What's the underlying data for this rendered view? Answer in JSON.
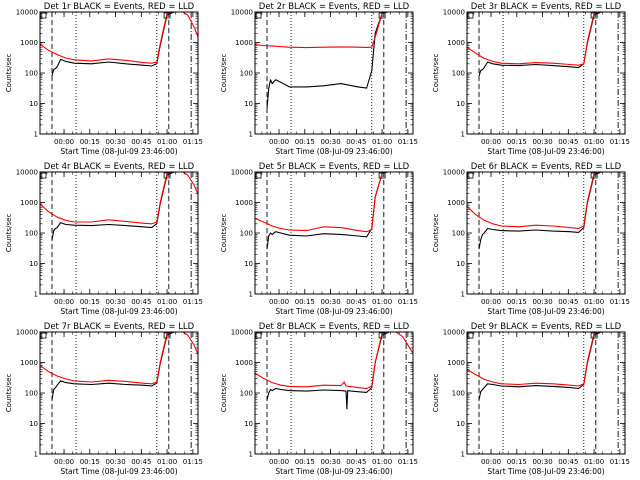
{
  "figure": {
    "background": "#ffffff",
    "series_colors": {
      "events": "#000000",
      "lld": "#ff0000"
    },
    "x_tick_labels": [
      "00:00",
      "00:15",
      "00:30",
      "00:45",
      "01:00",
      "01:15"
    ],
    "y_tick_labels": [
      "1",
      "10",
      "100",
      "1000",
      "10000"
    ]
  },
  "chart_data": [
    {
      "type": "line",
      "title": "Det 1r BLACK = Events, RED = LLD",
      "xlabel": "Start Time (08-Jul-09 23:46:00)",
      "ylabel": "Counts/sec",
      "yscale": "log",
      "ylim": [
        1,
        10000
      ],
      "xlim_minutes_from_start": [
        0,
        92
      ],
      "x_ticks": [
        "00:00",
        "00:15",
        "00:30",
        "00:45",
        "01:00",
        "01:15"
      ],
      "y_ticks": [
        "1",
        "10",
        "100",
        "1000",
        "10000"
      ],
      "vlines": {
        "dashed": [
          7,
          75
        ],
        "dotted": [
          21,
          68
        ],
        "dashdot": [
          88
        ]
      },
      "series": [
        {
          "name": "Events",
          "color": "#000000",
          "x": [
            7,
            8,
            9,
            10,
            12,
            15,
            20,
            30,
            40,
            50,
            60,
            65,
            68,
            70,
            74,
            80
          ],
          "y": [
            80,
            130,
            140,
            160,
            280,
            240,
            210,
            200,
            230,
            200,
            180,
            170,
            200,
            800,
            8000,
            11000
          ]
        },
        {
          "name": "LLD",
          "color": "#ff0000",
          "x": [
            0,
            5,
            10,
            15,
            20,
            30,
            40,
            50,
            60,
            65,
            68,
            70,
            74,
            80,
            86,
            90,
            92
          ],
          "y": [
            900,
            550,
            400,
            310,
            270,
            250,
            290,
            260,
            220,
            210,
            230,
            900,
            9000,
            13000,
            8000,
            3000,
            1500
          ]
        }
      ]
    },
    {
      "type": "line",
      "title": "Det 2r BLACK = Events, RED = LLD",
      "xlabel": "Start Time (08-Jul-09 23:46:00)",
      "ylabel": "Counts/sec",
      "yscale": "log",
      "ylim": [
        1,
        10000
      ],
      "xlim_minutes_from_start": [
        0,
        92
      ],
      "x_ticks": [
        "00:00",
        "00:15",
        "00:30",
        "00:45",
        "01:00",
        "01:15"
      ],
      "y_ticks": [
        "1",
        "10",
        "100",
        "1000",
        "10000"
      ],
      "vlines": {
        "dashed": [
          7,
          75
        ],
        "dotted": [
          21,
          68
        ],
        "dashdot": [
          88
        ]
      },
      "series": [
        {
          "name": "Events",
          "color": "#000000",
          "x": [
            7,
            8,
            9,
            10,
            12,
            15,
            20,
            30,
            40,
            50,
            60,
            65,
            68,
            70,
            74,
            80
          ],
          "y": [
            7,
            30,
            60,
            45,
            60,
            50,
            35,
            35,
            38,
            45,
            35,
            32,
            120,
            2000,
            9000,
            11000
          ]
        },
        {
          "name": "LLD",
          "color": "#ff0000",
          "x": [
            0,
            5,
            10,
            20,
            30,
            40,
            50,
            60,
            65,
            68,
            70,
            74,
            80
          ],
          "y": [
            850,
            800,
            760,
            700,
            680,
            700,
            720,
            700,
            690,
            700,
            1500,
            9000,
            11000
          ]
        }
      ]
    },
    {
      "type": "line",
      "title": "Det 3r BLACK = Events, RED = LLD",
      "xlabel": "Start Time (08-Jul-09 23:46:00)",
      "ylabel": "Counts/sec",
      "yscale": "log",
      "ylim": [
        1,
        10000
      ],
      "xlim_minutes_from_start": [
        0,
        92
      ],
      "x_ticks": [
        "00:00",
        "00:15",
        "00:30",
        "00:45",
        "01:00",
        "01:15"
      ],
      "y_ticks": [
        "1",
        "10",
        "100",
        "1000",
        "10000"
      ],
      "vlines": {
        "dashed": [
          7,
          75
        ],
        "dotted": [
          21,
          68
        ],
        "dashdot": [
          88
        ]
      },
      "series": [
        {
          "name": "Events",
          "color": "#000000",
          "x": [
            7,
            8,
            9,
            10,
            12,
            15,
            20,
            30,
            40,
            50,
            60,
            65,
            68,
            70,
            74,
            80
          ],
          "y": [
            80,
            120,
            130,
            150,
            230,
            200,
            180,
            175,
            190,
            175,
            160,
            150,
            200,
            900,
            8000,
            11000
          ]
        },
        {
          "name": "LLD",
          "color": "#ff0000",
          "x": [
            0,
            5,
            10,
            15,
            20,
            30,
            40,
            50,
            60,
            65,
            68,
            70,
            74,
            80
          ],
          "y": [
            700,
            450,
            300,
            240,
            210,
            200,
            220,
            210,
            190,
            180,
            200,
            1000,
            9000,
            12000
          ]
        }
      ]
    },
    {
      "type": "line",
      "title": "Det 4r BLACK = Events, RED = LLD",
      "xlabel": "Start Time (08-Jul-09 23:46:00)",
      "ylabel": "Counts/sec",
      "yscale": "log",
      "ylim": [
        1,
        10000
      ],
      "xlim_minutes_from_start": [
        0,
        92
      ],
      "x_ticks": [
        "00:00",
        "00:15",
        "00:30",
        "00:45",
        "01:00",
        "01:15"
      ],
      "y_ticks": [
        "1",
        "10",
        "100",
        "1000",
        "10000"
      ],
      "vlines": {
        "dashed": [
          7,
          75
        ],
        "dotted": [
          21,
          68
        ],
        "dashdot": [
          88
        ]
      },
      "series": [
        {
          "name": "Events",
          "color": "#000000",
          "x": [
            7,
            8,
            9,
            10,
            12,
            15,
            20,
            30,
            40,
            50,
            60,
            65,
            68,
            70,
            74,
            80
          ],
          "y": [
            60,
            120,
            140,
            150,
            220,
            190,
            180,
            175,
            190,
            175,
            160,
            150,
            200,
            900,
            8000,
            11000
          ]
        },
        {
          "name": "LLD",
          "color": "#ff0000",
          "x": [
            0,
            5,
            10,
            15,
            20,
            30,
            40,
            50,
            60,
            65,
            68,
            70,
            74,
            80,
            86,
            90,
            92
          ],
          "y": [
            900,
            500,
            330,
            260,
            230,
            230,
            270,
            240,
            210,
            200,
            230,
            1000,
            9000,
            13000,
            8000,
            3500,
            1800
          ]
        }
      ]
    },
    {
      "type": "line",
      "title": "Det 5r BLACK = Events, RED = LLD",
      "xlabel": "Start Time (08-Jul-09 23:46:00)",
      "ylabel": "Counts/sec",
      "yscale": "log",
      "ylim": [
        1,
        10000
      ],
      "xlim_minutes_from_start": [
        0,
        92
      ],
      "x_ticks": [
        "00:00",
        "00:15",
        "00:30",
        "00:45",
        "01:00",
        "01:15"
      ],
      "y_ticks": [
        "1",
        "10",
        "100",
        "1000",
        "10000"
      ],
      "vlines": {
        "dashed": [
          7,
          75
        ],
        "dotted": [
          21,
          68
        ],
        "dashdot": [
          88
        ]
      },
      "series": [
        {
          "name": "Events",
          "color": "#000000",
          "x": [
            7,
            8,
            9,
            10,
            12,
            15,
            20,
            30,
            40,
            50,
            60,
            65,
            68,
            70,
            74,
            80
          ],
          "y": [
            30,
            80,
            100,
            90,
            110,
            100,
            85,
            80,
            95,
            90,
            80,
            75,
            140,
            1500,
            9000,
            11000
          ]
        },
        {
          "name": "LLD",
          "color": "#ff0000",
          "x": [
            0,
            5,
            10,
            15,
            20,
            30,
            40,
            50,
            60,
            65,
            68,
            70,
            74,
            80
          ],
          "y": [
            300,
            230,
            170,
            140,
            125,
            120,
            160,
            150,
            120,
            110,
            130,
            1500,
            9000,
            11000
          ]
        }
      ]
    },
    {
      "type": "line",
      "title": "Det 6r BLACK = Events, RED = LLD",
      "xlabel": "Start Time (08-Jul-09 23:46:00)",
      "ylabel": "Counts/sec",
      "yscale": "log",
      "ylim": [
        1,
        10000
      ],
      "xlim_minutes_from_start": [
        0,
        92
      ],
      "x_ticks": [
        "00:00",
        "00:15",
        "00:30",
        "00:45",
        "01:00",
        "01:15"
      ],
      "y_ticks": [
        "1",
        "10",
        "100",
        "1000",
        "10000"
      ],
      "vlines": {
        "dashed": [
          7,
          75
        ],
        "dotted": [
          21,
          68
        ],
        "dashdot": [
          88
        ]
      },
      "series": [
        {
          "name": "Events",
          "color": "#000000",
          "x": [
            7,
            8,
            9,
            10,
            12,
            15,
            20,
            30,
            40,
            50,
            60,
            65,
            68,
            70,
            74,
            80
          ],
          "y": [
            30,
            60,
            90,
            100,
            140,
            130,
            120,
            115,
            125,
            115,
            110,
            105,
            150,
            900,
            8000,
            11000
          ]
        },
        {
          "name": "LLD",
          "color": "#ff0000",
          "x": [
            0,
            5,
            10,
            15,
            20,
            30,
            40,
            50,
            60,
            65,
            68,
            70,
            74,
            80
          ],
          "y": [
            750,
            400,
            260,
            200,
            170,
            160,
            180,
            170,
            150,
            140,
            170,
            1000,
            9000,
            12000
          ]
        }
      ]
    },
    {
      "type": "line",
      "title": "Det 7r BLACK = Events, RED = LLD",
      "xlabel": "Start Time (08-Jul-09 23:46:00)",
      "ylabel": "Counts/sec",
      "yscale": "log",
      "ylim": [
        1,
        10000
      ],
      "xlim_minutes_from_start": [
        0,
        92
      ],
      "x_ticks": [
        "00:00",
        "00:15",
        "00:30",
        "00:45",
        "01:00",
        "01:15"
      ],
      "y_ticks": [
        "1",
        "10",
        "100",
        "1000",
        "10000"
      ],
      "vlines": {
        "dashed": [
          7,
          75
        ],
        "dotted": [
          21,
          68
        ],
        "dashdot": [
          88
        ]
      },
      "series": [
        {
          "name": "Events",
          "color": "#000000",
          "x": [
            7,
            8,
            9,
            10,
            12,
            15,
            20,
            30,
            40,
            50,
            60,
            65,
            68,
            70,
            74,
            80
          ],
          "y": [
            60,
            130,
            150,
            180,
            250,
            220,
            200,
            190,
            210,
            190,
            180,
            170,
            210,
            900,
            8000,
            11000
          ]
        },
        {
          "name": "LLD",
          "color": "#ff0000",
          "x": [
            0,
            5,
            10,
            15,
            20,
            30,
            40,
            50,
            60,
            65,
            68,
            70,
            74,
            80,
            86,
            90,
            92
          ],
          "y": [
            800,
            500,
            360,
            290,
            250,
            230,
            260,
            240,
            210,
            200,
            230,
            1000,
            9000,
            13000,
            8000,
            3500,
            1800
          ]
        }
      ]
    },
    {
      "type": "line",
      "title": "Det 8r BLACK = Events, RED = LLD",
      "xlabel": "Start Time (08-Jul-09 23:46:00)",
      "ylabel": "Counts/sec",
      "yscale": "log",
      "ylim": [
        1,
        10000
      ],
      "xlim_minutes_from_start": [
        0,
        92
      ],
      "x_ticks": [
        "00:00",
        "00:15",
        "00:30",
        "00:45",
        "01:00",
        "01:15"
      ],
      "y_ticks": [
        "1",
        "10",
        "100",
        "1000",
        "10000"
      ],
      "vlines": {
        "dashed": [
          7,
          75
        ],
        "dotted": [
          21,
          68
        ],
        "dashdot": [
          88
        ]
      },
      "series": [
        {
          "name": "Events",
          "color": "#000000",
          "x": [
            7,
            8,
            9,
            10,
            12,
            15,
            20,
            30,
            40,
            50,
            53,
            53.5,
            54,
            56,
            60,
            65,
            68,
            70,
            74,
            80
          ],
          "y": [
            60,
            100,
            130,
            120,
            140,
            130,
            120,
            115,
            125,
            120,
            115,
            30,
            120,
            115,
            110,
            105,
            150,
            1000,
            8000,
            11000
          ]
        },
        {
          "name": "LLD",
          "color": "#ff0000",
          "x": [
            0,
            5,
            10,
            15,
            20,
            30,
            40,
            50,
            52,
            53,
            55,
            60,
            65,
            68,
            70,
            74,
            80,
            86,
            92
          ],
          "y": [
            450,
            300,
            220,
            180,
            165,
            160,
            180,
            175,
            230,
            170,
            165,
            150,
            140,
            170,
            1000,
            9000,
            12000,
            7000,
            2000
          ]
        }
      ]
    },
    {
      "type": "line",
      "title": "Det 9r BLACK = Events, RED = LLD",
      "xlabel": "Start Time (08-Jul-09 23:46:00)",
      "ylabel": "Counts/sec",
      "yscale": "log",
      "ylim": [
        1,
        10000
      ],
      "xlim_minutes_from_start": [
        0,
        92
      ],
      "x_ticks": [
        "00:00",
        "00:15",
        "00:30",
        "00:45",
        "01:00",
        "01:15"
      ],
      "y_ticks": [
        "1",
        "10",
        "100",
        "1000",
        "10000"
      ],
      "vlines": {
        "dashed": [
          7,
          75
        ],
        "dotted": [
          21,
          68
        ],
        "dashdot": [
          88
        ]
      },
      "series": [
        {
          "name": "Events",
          "color": "#000000",
          "x": [
            7,
            8,
            9,
            10,
            12,
            15,
            20,
            30,
            40,
            50,
            60,
            65,
            68,
            70,
            74,
            80
          ],
          "y": [
            60,
            110,
            130,
            150,
            200,
            190,
            170,
            160,
            175,
            165,
            150,
            140,
            190,
            900,
            8000,
            11000
          ]
        },
        {
          "name": "LLD",
          "color": "#ff0000",
          "x": [
            0,
            5,
            10,
            15,
            20,
            30,
            40,
            50,
            60,
            65,
            68,
            70,
            74,
            80
          ],
          "y": [
            600,
            400,
            280,
            230,
            200,
            190,
            210,
            200,
            180,
            170,
            200,
            1000,
            9000,
            12000
          ]
        }
      ]
    }
  ]
}
